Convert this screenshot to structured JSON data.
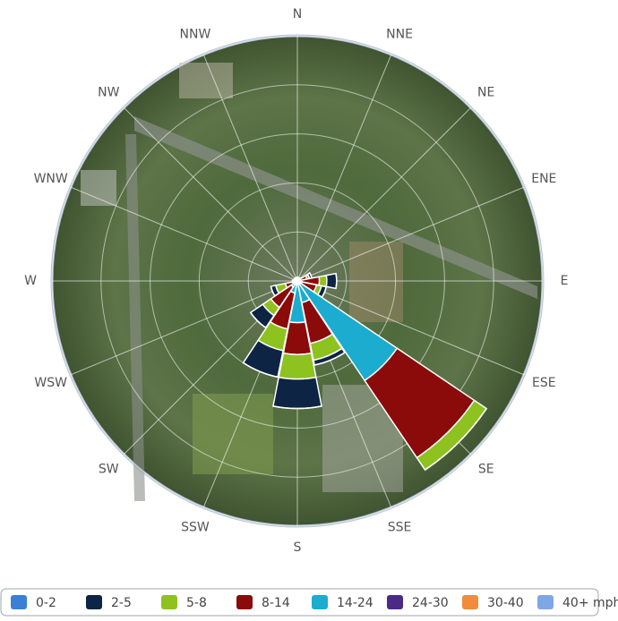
{
  "chart_data": {
    "type": "windrose",
    "categories": [
      "N",
      "NNE",
      "NE",
      "ENE",
      "E",
      "ESE",
      "SE",
      "SSE",
      "S",
      "SSW",
      "SW",
      "WSW",
      "W",
      "WNW",
      "NW",
      "NNW"
    ],
    "rlim": [
      0,
      100
    ],
    "rticks": [
      20,
      40,
      60,
      80,
      100
    ],
    "grid": true,
    "series": [
      {
        "name": "0-2",
        "color": "#3a80d6",
        "values": [
          0,
          0,
          0,
          0,
          0,
          0,
          0,
          0,
          0,
          0,
          0,
          0,
          0,
          0,
          0,
          0
        ]
      },
      {
        "name": "2-5",
        "color": "#0d2444",
        "values": [
          0.5,
          0.5,
          0.5,
          1,
          4,
          2,
          0,
          2,
          12,
          11,
          6,
          2,
          0.5,
          0.5,
          0.5,
          0.5
        ]
      },
      {
        "name": "5-8",
        "color": "#8dc21f",
        "values": [
          0.5,
          0.5,
          0.5,
          1,
          3,
          2,
          6,
          7,
          10,
          9,
          4,
          4,
          0.5,
          0.5,
          0.5,
          0.5
        ]
      },
      {
        "name": "8-14",
        "color": "#8b0a0a",
        "values": [
          0.5,
          0.5,
          0.5,
          3,
          8,
          6,
          38,
          17,
          13,
          15,
          10,
          3,
          1,
          0.5,
          0.5,
          0.5
        ]
      },
      {
        "name": "14-24",
        "color": "#1baccf",
        "values": [
          0,
          0,
          0,
          1,
          1,
          2,
          49,
          9,
          17,
          5,
          3,
          2,
          0,
          0,
          0,
          0
        ]
      },
      {
        "name": "24-30",
        "color": "#4b2a86",
        "values": [
          0,
          0,
          0,
          0,
          0,
          0,
          0,
          0,
          0,
          0,
          0,
          0,
          0,
          0,
          0,
          0
        ]
      },
      {
        "name": "30-40",
        "color": "#f08c3c",
        "values": [
          0,
          0,
          0,
          0,
          0,
          0,
          0,
          0,
          0,
          0,
          0,
          0,
          0,
          0,
          0,
          0
        ]
      },
      {
        "name": "40+ mph",
        "color": "#7fa7e6",
        "values": [
          0,
          0,
          0,
          0,
          0,
          0,
          0,
          0,
          0,
          0,
          0,
          0,
          0,
          0,
          0,
          0
        ]
      }
    ]
  }
}
